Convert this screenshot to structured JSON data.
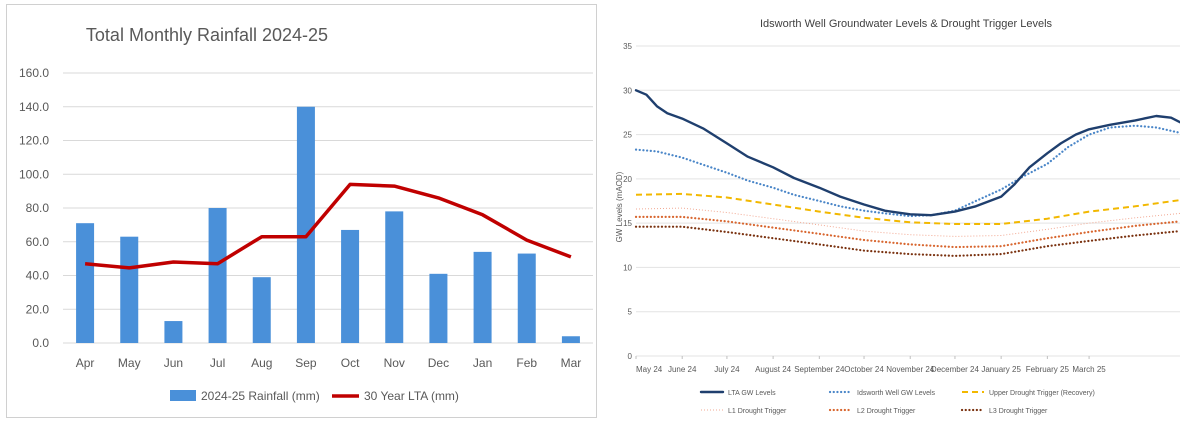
{
  "chart_data": [
    {
      "type": "bar",
      "title": "Total Monthly Rainfall 2024-25",
      "categories": [
        "Apr",
        "May",
        "Jun",
        "Jul",
        "Aug",
        "Sep",
        "Oct",
        "Nov",
        "Dec",
        "Jan",
        "Feb",
        "Mar"
      ],
      "y_ticks": [
        "0.0",
        "20.0",
        "40.0",
        "60.0",
        "80.0",
        "100.0",
        "120.0",
        "140.0",
        "160.0"
      ],
      "ylim": [
        0,
        160
      ],
      "grid": true,
      "legend_position": "bottom",
      "series": [
        {
          "name": "2024-25 Rainfall (mm)",
          "kind": "bar",
          "color": "#4a90d9",
          "values": [
            71,
            63,
            13,
            80,
            39,
            140,
            67,
            78,
            41,
            54,
            53,
            4
          ]
        },
        {
          "name": "30 Year LTA (mm)",
          "kind": "line",
          "color": "#c00000",
          "values": [
            47,
            44.5,
            48,
            47,
            63,
            63,
            94,
            93,
            86,
            76,
            61,
            51
          ]
        }
      ]
    },
    {
      "type": "line",
      "title": "Idsworth Well Groundwater Levels & Drought Trigger Levels",
      "ylabel": "GW Levels (mAOD)",
      "ylim": [
        0,
        35
      ],
      "y_ticks": [
        "0",
        "5",
        "10",
        "15",
        "20",
        "25",
        "30",
        "35"
      ],
      "x_range": [
        "2024-05-01",
        "2025-05-01"
      ],
      "x_ticks": [
        {
          "date": "2024-05-01",
          "label": "May 24"
        },
        {
          "date": "2024-06-01",
          "label": "June 24"
        },
        {
          "date": "2024-07-01",
          "label": "July 24"
        },
        {
          "date": "2024-08-01",
          "label": "August 24"
        },
        {
          "date": "2024-09-01",
          "label": "September 24"
        },
        {
          "date": "2024-10-01",
          "label": "October 24"
        },
        {
          "date": "2024-11-01",
          "label": "November 24"
        },
        {
          "date": "2024-12-01",
          "label": "December 24"
        },
        {
          "date": "2025-01-01",
          "label": "January 25"
        },
        {
          "date": "2025-02-01",
          "label": "February 25"
        },
        {
          "date": "2025-03-01",
          "label": "March 25"
        }
      ],
      "grid": true,
      "legend_position": "bottom",
      "series": [
        {
          "name": "LTA GW Levels",
          "color": "#1f3f6e",
          "style": "solid",
          "points": [
            [
              "2024-05-01",
              30.0
            ],
            [
              "2024-05-08",
              29.5
            ],
            [
              "2024-05-15",
              28.2
            ],
            [
              "2024-05-22",
              27.4
            ],
            [
              "2024-06-01",
              26.8
            ],
            [
              "2024-06-15",
              25.7
            ],
            [
              "2024-07-01",
              24.0
            ],
            [
              "2024-07-15",
              22.5
            ],
            [
              "2024-08-01",
              21.3
            ],
            [
              "2024-08-15",
              20.1
            ],
            [
              "2024-09-01",
              19.0
            ],
            [
              "2024-09-15",
              18.0
            ],
            [
              "2024-10-01",
              17.1
            ],
            [
              "2024-10-15",
              16.4
            ],
            [
              "2024-11-01",
              16.0
            ],
            [
              "2024-11-15",
              15.9
            ],
            [
              "2024-12-01",
              16.3
            ],
            [
              "2024-12-15",
              16.9
            ],
            [
              "2025-01-01",
              18.0
            ],
            [
              "2025-01-10",
              19.4
            ],
            [
              "2025-01-20",
              21.3
            ],
            [
              "2025-02-01",
              22.9
            ],
            [
              "2025-02-10",
              24.0
            ],
            [
              "2025-02-20",
              25.0
            ],
            [
              "2025-03-01",
              25.6
            ],
            [
              "2025-03-15",
              26.1
            ],
            [
              "2025-04-01",
              26.6
            ],
            [
              "2025-04-15",
              27.1
            ],
            [
              "2025-04-25",
              26.9
            ],
            [
              "2025-05-01",
              26.4
            ]
          ]
        },
        {
          "name": "Idsworth Well GW Levels",
          "color": "#4a86c8",
          "style": "dotted",
          "points": [
            [
              "2024-05-01",
              23.3
            ],
            [
              "2024-05-15",
              23.1
            ],
            [
              "2024-06-01",
              22.4
            ],
            [
              "2024-06-15",
              21.6
            ],
            [
              "2024-07-01",
              20.7
            ],
            [
              "2024-07-15",
              19.8
            ],
            [
              "2024-08-01",
              19.0
            ],
            [
              "2024-08-15",
              18.2
            ],
            [
              "2024-09-01",
              17.5
            ],
            [
              "2024-09-15",
              16.9
            ],
            [
              "2024-10-01",
              16.4
            ],
            [
              "2024-10-15",
              16.1
            ],
            [
              "2024-11-01",
              15.8
            ],
            [
              "2024-11-15",
              15.9
            ],
            [
              "2024-12-01",
              16.4
            ],
            [
              "2024-12-15",
              17.5
            ],
            [
              "2025-01-01",
              18.8
            ],
            [
              "2025-01-15",
              20.2
            ],
            [
              "2025-02-01",
              21.7
            ],
            [
              "2025-02-15",
              23.6
            ],
            [
              "2025-03-01",
              25.0
            ],
            [
              "2025-03-15",
              25.8
            ],
            [
              "2025-04-01",
              26.0
            ],
            [
              "2025-04-15",
              25.8
            ],
            [
              "2025-05-01",
              25.2
            ]
          ]
        },
        {
          "name": "Upper Drought Trigger (Recovery)",
          "color": "#f2b800",
          "style": "dashed",
          "points": [
            [
              "2024-05-01",
              18.2
            ],
            [
              "2024-06-01",
              18.3
            ],
            [
              "2024-07-01",
              17.9
            ],
            [
              "2024-08-01",
              17.1
            ],
            [
              "2024-09-01",
              16.3
            ],
            [
              "2024-10-01",
              15.6
            ],
            [
              "2024-11-01",
              15.1
            ],
            [
              "2024-12-01",
              14.9
            ],
            [
              "2025-01-01",
              14.9
            ],
            [
              "2025-02-01",
              15.5
            ],
            [
              "2025-03-01",
              16.3
            ],
            [
              "2025-04-01",
              16.9
            ],
            [
              "2025-05-01",
              17.6
            ]
          ]
        },
        {
          "name": "L1 Drought Trigger",
          "color": "#f2a993",
          "style": "fine-dotted",
          "points": [
            [
              "2024-05-01",
              16.6
            ],
            [
              "2024-06-01",
              16.7
            ],
            [
              "2024-07-01",
              16.2
            ],
            [
              "2024-08-01",
              15.5
            ],
            [
              "2024-09-01",
              14.8
            ],
            [
              "2024-10-01",
              14.1
            ],
            [
              "2024-11-01",
              13.7
            ],
            [
              "2024-12-01",
              13.5
            ],
            [
              "2025-01-01",
              13.6
            ],
            [
              "2025-02-01",
              14.3
            ],
            [
              "2025-03-01",
              15.0
            ],
            [
              "2025-04-01",
              15.6
            ],
            [
              "2025-05-01",
              16.1
            ]
          ]
        },
        {
          "name": "L2 Drought Trigger",
          "color": "#d8662f",
          "style": "dotted",
          "points": [
            [
              "2024-05-01",
              15.7
            ],
            [
              "2024-06-01",
              15.7
            ],
            [
              "2024-07-01",
              15.2
            ],
            [
              "2024-08-01",
              14.5
            ],
            [
              "2024-09-01",
              13.8
            ],
            [
              "2024-10-01",
              13.1
            ],
            [
              "2024-11-01",
              12.6
            ],
            [
              "2024-12-01",
              12.3
            ],
            [
              "2025-01-01",
              12.4
            ],
            [
              "2025-02-01",
              13.3
            ],
            [
              "2025-03-01",
              14.0
            ],
            [
              "2025-04-01",
              14.7
            ],
            [
              "2025-05-01",
              15.2
            ]
          ]
        },
        {
          "name": "L3 Drought Trigger",
          "color": "#7a3210",
          "style": "dotted",
          "points": [
            [
              "2024-05-01",
              14.6
            ],
            [
              "2024-06-01",
              14.6
            ],
            [
              "2024-07-01",
              14.0
            ],
            [
              "2024-08-01",
              13.3
            ],
            [
              "2024-09-01",
              12.6
            ],
            [
              "2024-10-01",
              11.9
            ],
            [
              "2024-11-01",
              11.5
            ],
            [
              "2024-12-01",
              11.3
            ],
            [
              "2025-01-01",
              11.5
            ],
            [
              "2025-02-01",
              12.4
            ],
            [
              "2025-03-01",
              13.0
            ],
            [
              "2025-04-01",
              13.6
            ],
            [
              "2025-05-01",
              14.1
            ]
          ]
        }
      ]
    }
  ]
}
